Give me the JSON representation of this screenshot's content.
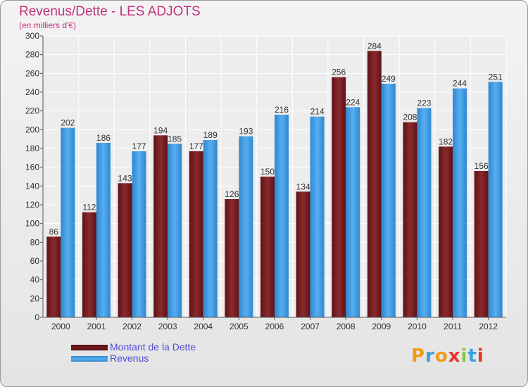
{
  "chart_data": {
    "type": "bar",
    "title": "Revenus/Dette - LES ADJOTS",
    "subtitle": "(en milliers d'€)",
    "categories": [
      "2000",
      "2001",
      "2002",
      "2003",
      "2004",
      "2005",
      "2006",
      "2007",
      "2008",
      "2009",
      "2010",
      "2011",
      "2012"
    ],
    "series": [
      {
        "name": "Montant de la Dette",
        "color": "#7a1c20",
        "values": [
          86,
          112,
          143,
          194,
          177,
          126,
          150,
          134,
          256,
          284,
          208,
          182,
          156
        ]
      },
      {
        "name": "Revenus",
        "color": "#3d9ae4",
        "values": [
          202,
          186,
          177,
          185,
          189,
          193,
          216,
          214,
          224,
          249,
          223,
          244,
          251
        ]
      }
    ],
    "ylim": [
      0,
      300
    ],
    "yticks": [
      0,
      20,
      40,
      60,
      80,
      100,
      120,
      140,
      160,
      180,
      200,
      220,
      240,
      260,
      280,
      300
    ],
    "grid": true,
    "legend_position": "bottom-left"
  },
  "logo": {
    "letters": [
      "P",
      "r",
      "o",
      "x",
      "i",
      "t",
      "i"
    ],
    "colors": [
      "#f39a16",
      "#3aa0de",
      "#f39a16",
      "#e8352a",
      "#8dc63f",
      "#3aa0de",
      "#e8352a"
    ]
  }
}
